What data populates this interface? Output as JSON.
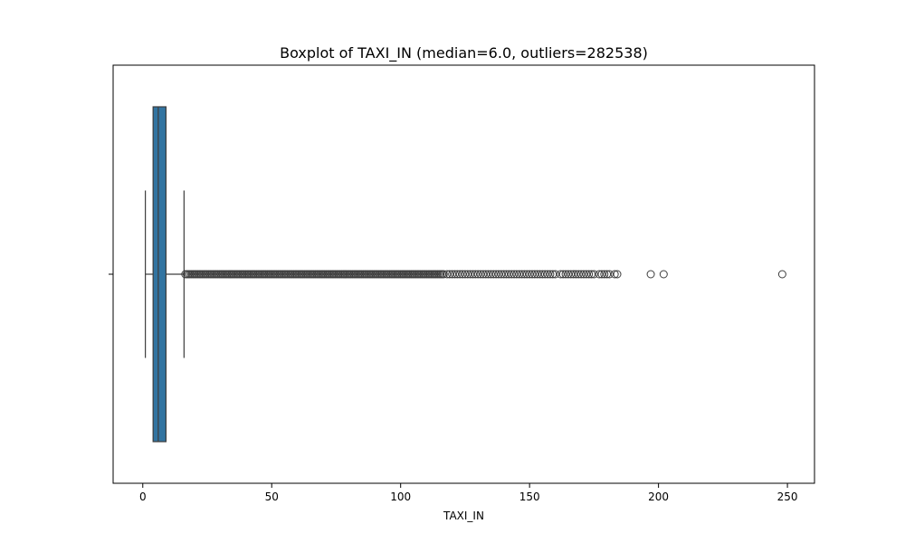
{
  "chart_data": {
    "type": "boxplot",
    "title": "Boxplot of TAXI_IN (median=6.0, outliers=282538)",
    "xlabel": "TAXI_IN",
    "ylabel": "",
    "orientation": "horizontal",
    "xlim": [
      -11.5,
      260.5
    ],
    "xticks": [
      0,
      50,
      100,
      150,
      200,
      250
    ],
    "xtick_labels": [
      "0",
      "50",
      "100",
      "150",
      "200",
      "250"
    ],
    "grid": false,
    "box": {
      "whisker_low": 1,
      "q1": 4,
      "median": 6,
      "q3": 9,
      "whisker_high": 16
    },
    "outliers_dense_range": [
      16.5,
      117
    ],
    "outliers_sparse": [
      118,
      119,
      120,
      121,
      122,
      123,
      124,
      125,
      126,
      127,
      128,
      129,
      130,
      131,
      132,
      133,
      134,
      135,
      136,
      137,
      138,
      139,
      140,
      141,
      142,
      143,
      144,
      145,
      146,
      147,
      148,
      149,
      150,
      151,
      152,
      153,
      154,
      155,
      156,
      157,
      158,
      159,
      160,
      162,
      163,
      164,
      165,
      166,
      167,
      168,
      169,
      170,
      171,
      172,
      173,
      174,
      175,
      177,
      178,
      179,
      180,
      181,
      183,
      184,
      197,
      202,
      248
    ],
    "colors": {
      "box_fill": "#3274a1",
      "line": "#3d3d3d",
      "outlier_edge": "#3d3d3d"
    }
  }
}
